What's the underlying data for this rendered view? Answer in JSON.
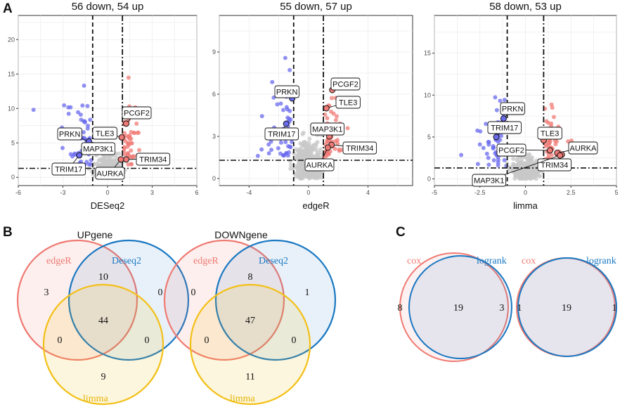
{
  "panel_letters": {
    "a": "A",
    "b": "B",
    "c": "C"
  },
  "colors": {
    "down": "#6b6bef",
    "up": "#f07b76",
    "ns": "#c8c8c8",
    "edgeR": "#ef7a72",
    "deseq2": "#1a78c2",
    "limma": "#f3c018",
    "cox": "#ef7a72",
    "logrank": "#1a78c2"
  },
  "chart_data": [
    {
      "type": "scatter",
      "subtype": "volcano",
      "title": "56 down, 54 up",
      "xlabel": "DESeq2",
      "ylabel": "",
      "xlim": [
        -6,
        6
      ],
      "ylim": [
        -1.2,
        23.5
      ],
      "xticks": [
        -6,
        -3,
        0,
        3,
        6
      ],
      "yticks": [
        0,
        5,
        10,
        15,
        20
      ],
      "vlines": [
        -1,
        1
      ],
      "hline": 1.3,
      "genes": [
        {
          "name": "PCGF2",
          "x": 1.25,
          "y": 7.8
        },
        {
          "name": "TLE3",
          "x": 0.95,
          "y": 5.8
        },
        {
          "name": "PRKN",
          "x": -1.25,
          "y": 5.2
        },
        {
          "name": "MAP3K1",
          "x": -1.3,
          "y": 4.6
        },
        {
          "name": "TRIM34",
          "x": 1.25,
          "y": 2.6
        },
        {
          "name": "TRIM17",
          "x": -1.9,
          "y": 3.2
        },
        {
          "name": "AURKA",
          "x": 0.9,
          "y": 2.6
        }
      ]
    },
    {
      "type": "scatter",
      "subtype": "volcano",
      "title": "55 down, 57 up",
      "xlabel": "edgeR",
      "ylabel": "",
      "xlim": [
        -6,
        7
      ],
      "ylim": [
        -0.5,
        11.6
      ],
      "xticks": [
        -4,
        0,
        4
      ],
      "yticks": [
        0,
        3,
        6,
        9
      ],
      "vlines": [
        -1,
        1
      ],
      "hline": 1.3,
      "genes": [
        {
          "name": "PCGF2",
          "x": 1.6,
          "y": 6.3
        },
        {
          "name": "PRKN",
          "x": -1.1,
          "y": 5.7
        },
        {
          "name": "TLE3",
          "x": 1.2,
          "y": 5.0
        },
        {
          "name": "TRIM17",
          "x": -1.5,
          "y": 3.9
        },
        {
          "name": "MAP3K1",
          "x": 1.4,
          "y": 3.0
        },
        {
          "name": "TRIM34",
          "x": 1.55,
          "y": 2.4
        },
        {
          "name": "AURKA",
          "x": 1.3,
          "y": 2.2
        }
      ]
    },
    {
      "type": "scatter",
      "subtype": "volcano",
      "title": "58 down, 53 up",
      "xlabel": "limma",
      "ylabel": "",
      "xlim": [
        -5,
        5
      ],
      "ylim": [
        -0.8,
        19.5
      ],
      "xticks": [
        -5.0,
        -2.5,
        0.0,
        2.5,
        5.0
      ],
      "yticks": [
        0,
        5,
        10,
        15
      ],
      "vlines": [
        -1,
        1
      ],
      "hline": 1.3,
      "genes": [
        {
          "name": "PRKN",
          "x": -1.2,
          "y": 7.2
        },
        {
          "name": "TRIM17",
          "x": -1.6,
          "y": 5.0
        },
        {
          "name": "TLE3",
          "x": 1.0,
          "y": 4.6
        },
        {
          "name": "PCGF2",
          "x": 1.35,
          "y": 3.4
        },
        {
          "name": "AURKA",
          "x": 1.75,
          "y": 3.1
        },
        {
          "name": "TRIM34",
          "x": 2.0,
          "y": 2.9
        },
        {
          "name": "MAP3K1",
          "x": 1.9,
          "y": 2.8
        }
      ]
    },
    {
      "type": "venn",
      "title": "UPgene",
      "sets": [
        "edgeR",
        "Deseq2",
        "limma"
      ],
      "regions": {
        "edgeR_only": 3,
        "edgeR_Deseq2": 10,
        "Deseq2_only": 0,
        "all": 44,
        "edgeR_limma": 0,
        "Deseq2_limma": 0,
        "limma_only": 9
      }
    },
    {
      "type": "venn",
      "title": "DOWNgene",
      "sets": [
        "edgeR",
        "Deseq2",
        "limma"
      ],
      "regions": {
        "edgeR_only": 0,
        "edgeR_Deseq2": 8,
        "Deseq2_only": 1,
        "all": 47,
        "edgeR_limma": 0,
        "Deseq2_limma": 0,
        "limma_only": 11
      }
    },
    {
      "type": "venn",
      "title": "",
      "sets": [
        "cox",
        "logrank"
      ],
      "regions": {
        "cox_only": 8,
        "both": 19,
        "logrank_only": 3
      }
    },
    {
      "type": "venn",
      "title": "",
      "sets": [
        "cox",
        "logrank"
      ],
      "regions": {
        "cox_only": 1,
        "both": 19,
        "logrank_only": 1
      }
    }
  ]
}
